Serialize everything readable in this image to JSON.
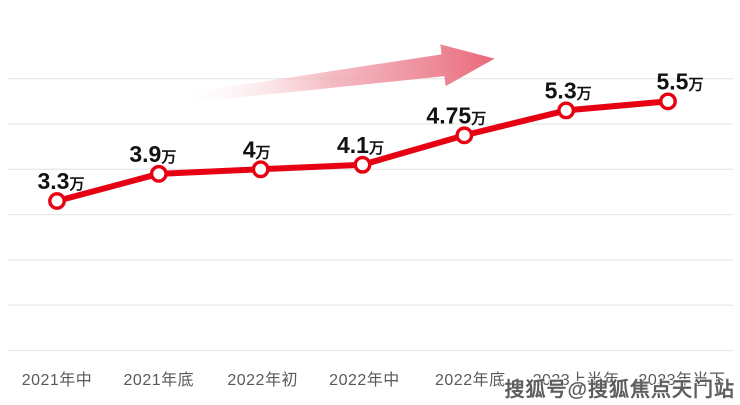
{
  "chart_data": {
    "type": "line",
    "categories": [
      "2021年中",
      "2021年底",
      "2022年初",
      "2022年中",
      "2022年底",
      "2023上半年",
      "2023年当下"
    ],
    "values": [
      3.3,
      3.9,
      4.0,
      4.1,
      4.75,
      5.3,
      5.5
    ],
    "point_labels": [
      "3.3",
      "3.9",
      "4",
      "4.1",
      "4.75",
      "5.3",
      "5.5"
    ],
    "unit": "万",
    "title": "",
    "xlabel": "",
    "ylabel": "",
    "ylim": [
      0,
      6
    ],
    "grid": true,
    "gridline_step": 1,
    "legend": "none",
    "annotations": [
      "upward-trend-arrow"
    ]
  },
  "colors": {
    "line": "#e60012",
    "marker_fill": "#ffffff",
    "marker_stroke": "#e60012",
    "grid": "#e9e9e9",
    "axis_label": "#595959",
    "point_label": "#121212",
    "arrow_strong": "#e9697b",
    "arrow_mid": "#f2aab5",
    "arrow_faint": "#fdf1f3"
  },
  "watermark": {
    "text": "搜狐号@搜狐焦点天门站"
  }
}
